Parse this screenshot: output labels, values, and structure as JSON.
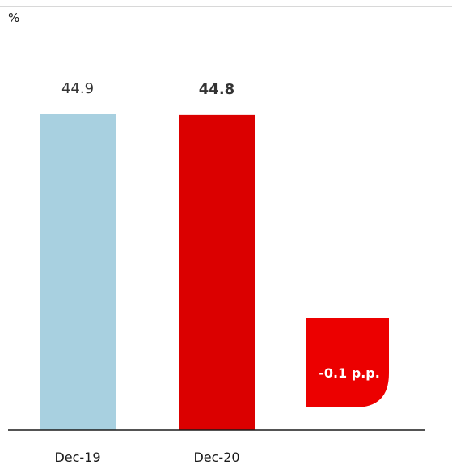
{
  "chart_data": {
    "type": "bar",
    "ylabel": "%",
    "categories": [
      "Dec-19",
      "Dec-20"
    ],
    "values": [
      44.9,
      44.8
    ],
    "value_labels": [
      "44.9",
      "44.8"
    ],
    "bar_colors": [
      "#a8d0e0",
      "#db0000"
    ],
    "ylim": [
      0,
      44.9
    ],
    "grid": false,
    "change_badge": {
      "text": "-0.1 p.p.",
      "color": "#ec0000"
    }
  }
}
